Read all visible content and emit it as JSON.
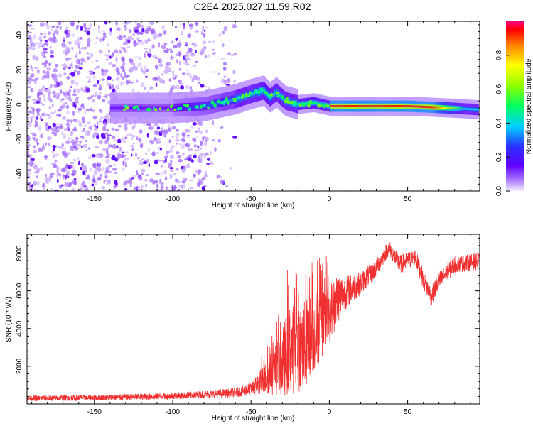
{
  "title": "C2E4.2025.027.11.59.R02",
  "colors": {
    "snr_line": "#f03030",
    "spectrogram_cloud": "#8040ff",
    "axis": "#000000"
  },
  "chart_data": [
    {
      "type": "heatmap",
      "name": "spectrogram",
      "xlabel": "Height of straight line (km)",
      "ylabel": "Frequency (Hz)",
      "xlim": [
        -193,
        96
      ],
      "ylim": [
        -50,
        48
      ],
      "xticks": [
        -150,
        -100,
        -50,
        0,
        50
      ],
      "yticks": [
        -40,
        -20,
        0,
        20,
        40
      ],
      "colorbar": {
        "label": "Normalized spectral amplitude",
        "range": [
          0.0,
          1.0
        ],
        "ticks": [
          0.0,
          0.2,
          0.4,
          0.6,
          0.8
        ],
        "tick_labels": [
          "0.0",
          "0.2",
          "0.4",
          "0.6",
          "0.8"
        ]
      },
      "ridge": {
        "description_points_x": [
          -140,
          -100,
          -80,
          -60,
          -50,
          -42,
          -38,
          -34,
          -28,
          -20,
          -10,
          0,
          20,
          50,
          75,
          95
        ],
        "description_points_y": [
          -2,
          -2,
          -1,
          3,
          6,
          8,
          4,
          7,
          2,
          0,
          1,
          -1,
          -1,
          -1,
          -2,
          -3
        ],
        "peak_amplitude": 1.0
      },
      "noise_region": {
        "x_range": [
          -193,
          -78
        ],
        "y_range": [
          -50,
          48
        ],
        "amplitude": 0.1
      }
    },
    {
      "type": "line",
      "name": "snr",
      "xlabel": "Height of straight line (km)",
      "ylabel": "SNR (10 * v/v)",
      "xlim": [
        -193,
        96
      ],
      "ylim": [
        0,
        9000
      ],
      "xticks": [
        -150,
        -100,
        -50,
        0,
        50
      ],
      "yticks": [
        2000,
        4000,
        6000,
        8000
      ],
      "envelope": {
        "x": [
          -193,
          -150,
          -100,
          -80,
          -60,
          -50,
          -40,
          -30,
          -25,
          -20,
          -15,
          -10,
          -5,
          0,
          5,
          10,
          20,
          30,
          38,
          45,
          55,
          60,
          65,
          70,
          80,
          90,
          96
        ],
        "mean": [
          300,
          330,
          420,
          500,
          600,
          800,
          1400,
          2200,
          3000,
          2800,
          3200,
          3800,
          4200,
          4800,
          5600,
          5900,
          6400,
          7200,
          8300,
          7400,
          7800,
          6600,
          5700,
          6500,
          7400,
          7500,
          7600
        ],
        "spread": [
          150,
          150,
          180,
          200,
          250,
          350,
          900,
          1800,
          2500,
          2200,
          2400,
          2200,
          1800,
          1600,
          1400,
          900,
          600,
          500,
          400,
          500,
          450,
          500,
          500,
          500,
          450,
          450,
          450
        ]
      }
    }
  ]
}
